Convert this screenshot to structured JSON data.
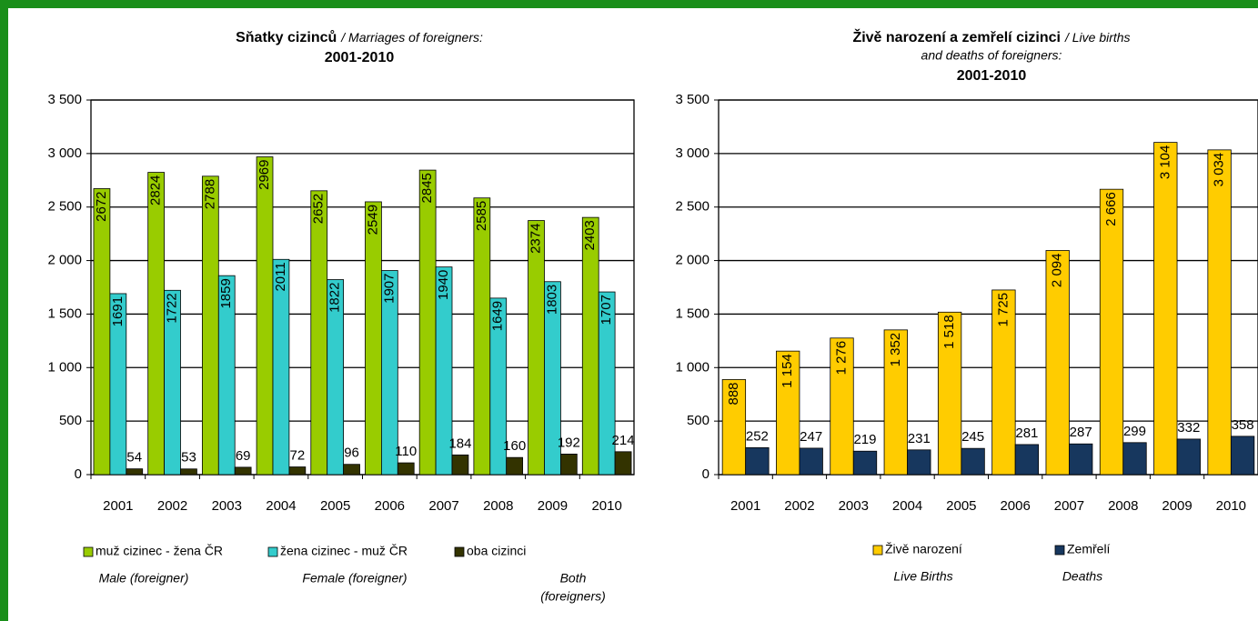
{
  "chart_data": [
    {
      "type": "bar",
      "title": "Sňatky cizinců",
      "title_en": [
        "/ Marriages of foreigners:"
      ],
      "title_period": "2001-2010",
      "categories": [
        "2001",
        "2002",
        "2003",
        "2004",
        "2005",
        "2006",
        "2007",
        "2008",
        "2009",
        "2010"
      ],
      "series": [
        {
          "name": "muž cizinec - žena ČR",
          "name_en": [
            "Male (foreigner)"
          ],
          "color": "#99cc00",
          "values": [
            2672,
            2824,
            2788,
            2969,
            2652,
            2549,
            2845,
            2585,
            2374,
            2403
          ]
        },
        {
          "name": "žena cizinec - muž ČR",
          "name_en": [
            "Female (foreigner)"
          ],
          "color": "#33cccc",
          "values": [
            1691,
            1722,
            1859,
            2011,
            1822,
            1907,
            1940,
            1649,
            1803,
            1707
          ]
        },
        {
          "name": "oba cizinci",
          "name_en": [
            "Both",
            "(foreigners)"
          ],
          "color": "#333300",
          "values": [
            54,
            53,
            69,
            72,
            96,
            110,
            184,
            160,
            192,
            214
          ]
        }
      ],
      "ylim": [
        0,
        3500
      ],
      "yticks": [
        0,
        500,
        {
          "value": 1000,
          "label": "1 000"
        },
        {
          "value": 1500,
          "label": "1 500"
        },
        {
          "value": 2000,
          "label": "2 000"
        },
        {
          "value": 2500,
          "label": "2 500"
        },
        {
          "value": 3000,
          "label": "3 000"
        },
        {
          "value": 3500,
          "label": "3 500"
        }
      ],
      "grid": true
    },
    {
      "type": "bar",
      "title": "Živě narození a zemřelí cizinci",
      "title_en": [
        "/ Live births",
        "and deaths of foreigners:"
      ],
      "title_period": "2001-2010",
      "categories": [
        "2001",
        "2002",
        "2003",
        "2004",
        "2005",
        "2006",
        "2007",
        "2008",
        "2009",
        "2010"
      ],
      "series": [
        {
          "name": "Živě narození",
          "name_en": [
            "Live Births"
          ],
          "color": "#ffcc00",
          "values": [
            888,
            1154,
            1276,
            1352,
            1518,
            1725,
            2094,
            2666,
            3104,
            3034
          ],
          "value_labels": [
            "888",
            "1 154",
            "1 276",
            "1 352",
            "1 518",
            "1 725",
            "2 094",
            "2 666",
            "3 104",
            "3 034"
          ]
        },
        {
          "name": "Zemřelí",
          "name_en": [
            "Deaths"
          ],
          "color": "#17375e",
          "values": [
            252,
            247,
            219,
            231,
            245,
            281,
            287,
            299,
            332,
            358
          ]
        }
      ],
      "ylim": [
        0,
        3500
      ],
      "yticks": [
        0,
        500,
        {
          "value": 1000,
          "label": "1 000"
        },
        {
          "value": 1500,
          "label": "1 500"
        },
        {
          "value": 2000,
          "label": "2 000"
        },
        {
          "value": 2500,
          "label": "2 500"
        },
        {
          "value": 3000,
          "label": "3 000"
        },
        {
          "value": 3500,
          "label": "3 500"
        }
      ],
      "grid": true
    }
  ]
}
